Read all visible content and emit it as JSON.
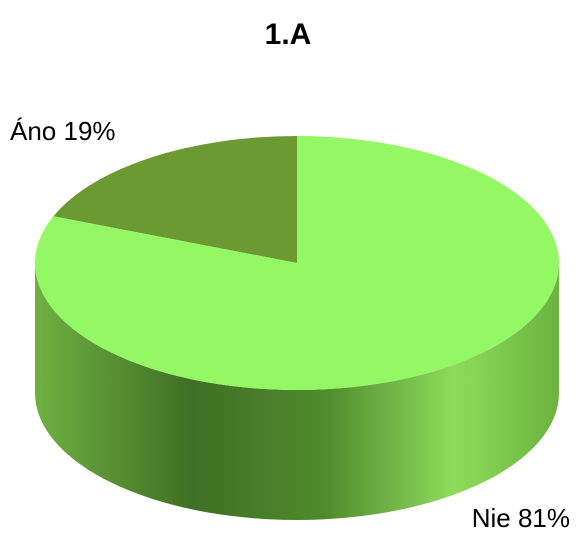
{
  "chart_data": {
    "type": "pie3d",
    "title": "1.A",
    "categories": [
      "Áno",
      "Nie"
    ],
    "values": [
      19,
      81
    ],
    "value_labels": [
      "19%",
      "81%"
    ],
    "colors": [
      "#6b9a32",
      "#94f764"
    ]
  }
}
